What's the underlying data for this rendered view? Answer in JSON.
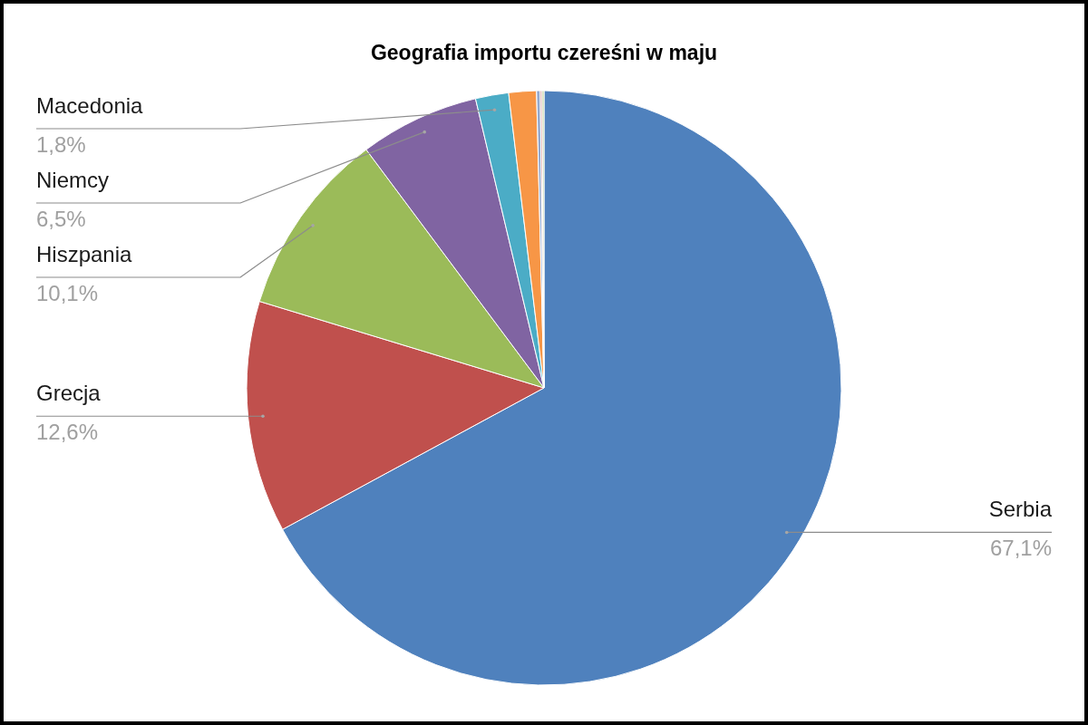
{
  "chart_data": {
    "type": "pie",
    "title": "Geografia importu czereśni w maju",
    "categories": [
      "Serbia",
      "Grecja",
      "Hiszpania",
      "Niemcy",
      "Macedonia",
      null,
      null,
      null,
      null
    ],
    "values": [
      67.1,
      12.6,
      10.1,
      6.5,
      1.8,
      1.5,
      0.2,
      0.1,
      0.1
    ],
    "colors": [
      "#4f81bd",
      "#c0504d",
      "#9bbb59",
      "#8064a2",
      "#4bacc6",
      "#f79646",
      "#93a9cf",
      "#d19392",
      "#b9cd96"
    ],
    "value_labels": [
      "67,1%",
      "12,6%",
      "10,1%",
      "6,5%",
      "1,8%",
      null,
      null,
      null,
      null
    ]
  }
}
